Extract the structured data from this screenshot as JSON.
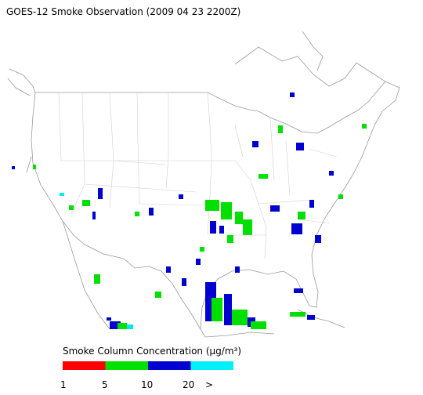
{
  "header": {
    "title": "GOES-12 Smoke Observation (2009 04 23  2200Z)"
  },
  "legend": {
    "title": "Smoke Column Concentration (μg/m³)",
    "colors": [
      "#ff0000",
      "#00e000",
      "#0000d0",
      "#00f0f8"
    ],
    "tick_labels": [
      "1",
      "5",
      "10",
      "20",
      ">"
    ]
  }
}
